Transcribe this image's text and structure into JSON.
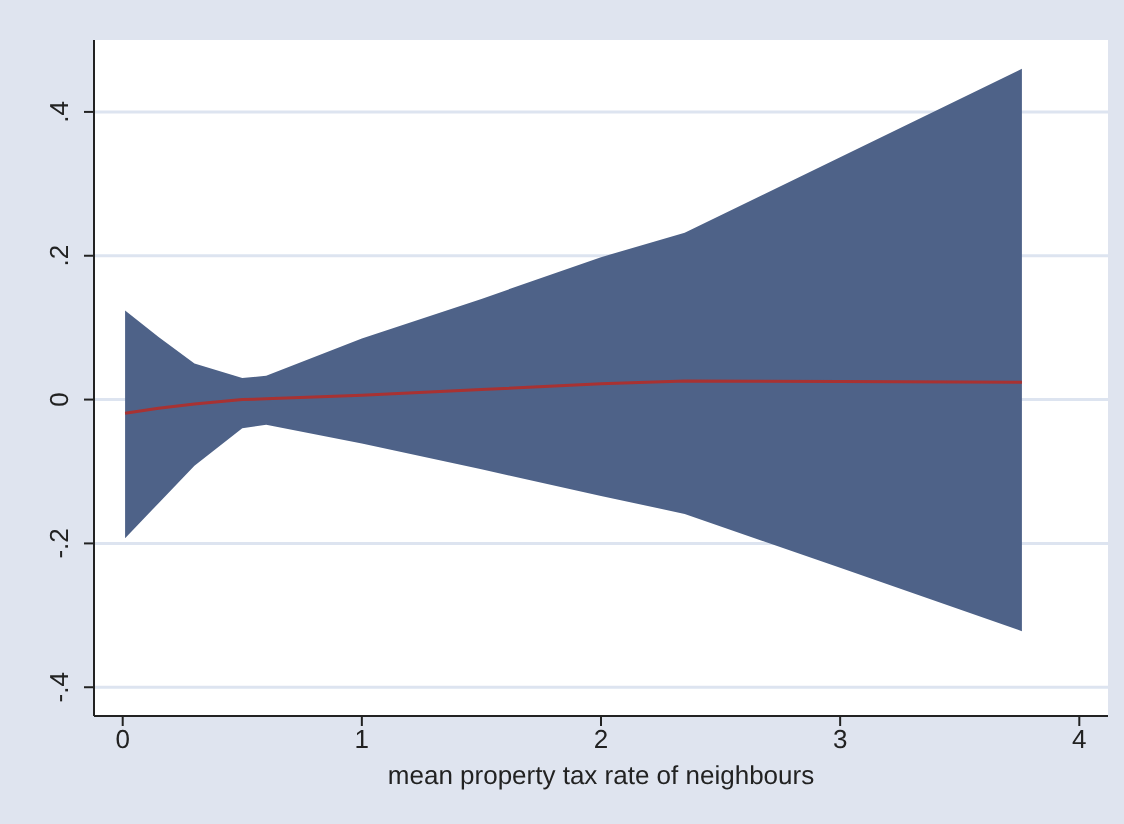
{
  "chart_data": {
    "type": "line",
    "xlabel": "mean property tax rate of neighbours",
    "x": [
      0.01,
      0.15,
      0.3,
      0.5,
      0.6,
      1,
      1.5,
      2,
      2.35,
      3,
      3.76
    ],
    "series": [
      {
        "color": "#a83232",
        "values": [
          -0.019,
          -0.012,
          -0.006,
          0,
          0.001,
          0.006,
          0.014,
          0.022,
          0.026,
          0.025,
          0.024
        ],
        "lower": [
          -0.193,
          -0.144,
          -0.092,
          -0.04,
          -0.035,
          -0.061,
          -0.097,
          -0.134,
          -0.159,
          -0.234,
          -0.322
        ],
        "upper": [
          0.124,
          0.087,
          0.05,
          0.03,
          0.033,
          0.085,
          0.14,
          0.198,
          0.232,
          0.337,
          0.46
        ]
      }
    ],
    "xlim": [
      -0.12,
      4.12
    ],
    "xticks": [
      0,
      1,
      2,
      3,
      4
    ],
    "ylim": [
      -0.44,
      0.5
    ],
    "yticks": [
      {
        "value": -0.4,
        "label": "-.4"
      },
      {
        "value": -0.2,
        "label": "-.2"
      },
      {
        "value": 0,
        "label": "0"
      },
      {
        "value": 0.2,
        "label": ".2"
      },
      {
        "value": 0.4,
        "label": ".4"
      }
    ],
    "grid": "y",
    "legend": false,
    "marker": "none",
    "line_style": "solid"
  }
}
